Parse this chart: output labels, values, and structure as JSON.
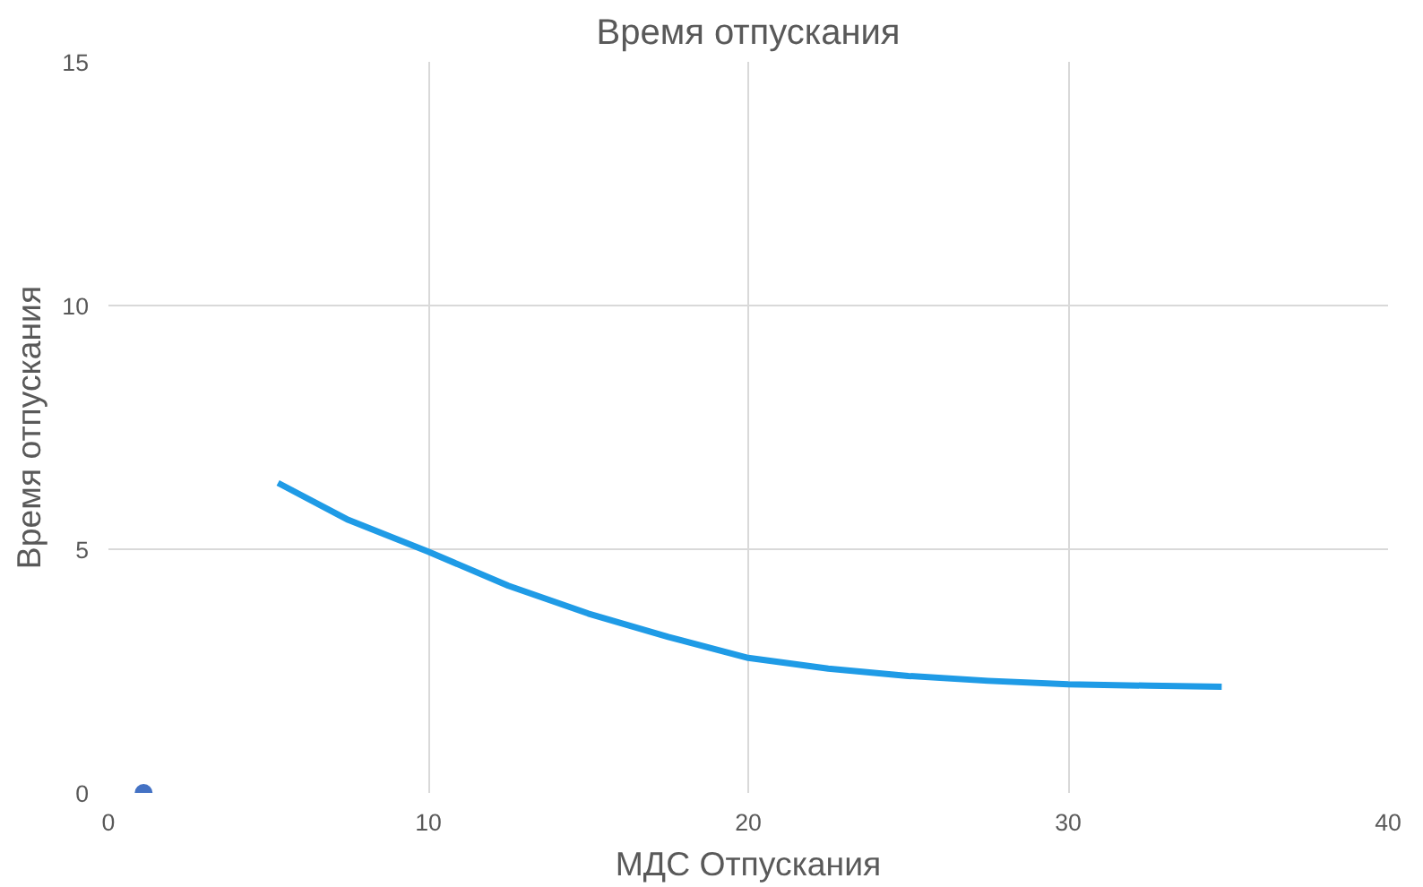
{
  "chart_data": {
    "type": "line",
    "title": "Время отпускания",
    "xlabel": "МДС Отпускания",
    "ylabel": "Время отпускания",
    "xlim": [
      0,
      40
    ],
    "xticks": [
      0,
      10,
      20,
      30,
      40
    ],
    "ylim": [
      0,
      15
    ],
    "yticks": [
      0,
      5,
      10,
      15
    ],
    "grid": true,
    "marker": "none",
    "series": [
      {
        "color": "#1f9be6",
        "x": [
          5.3,
          7.5,
          10,
          12.5,
          15,
          17.5,
          20,
          22.5,
          25,
          27.5,
          30,
          32.5,
          34.8
        ],
        "values": [
          6.36,
          5.6,
          4.95,
          4.25,
          3.68,
          3.2,
          2.77,
          2.55,
          2.4,
          2.3,
          2.23,
          2.2,
          2.18
        ]
      },
      {
        "type": "scatter",
        "color": "#4472c4",
        "marker": "circle",
        "x": [
          1.1
        ],
        "values": [
          0
        ]
      }
    ]
  }
}
